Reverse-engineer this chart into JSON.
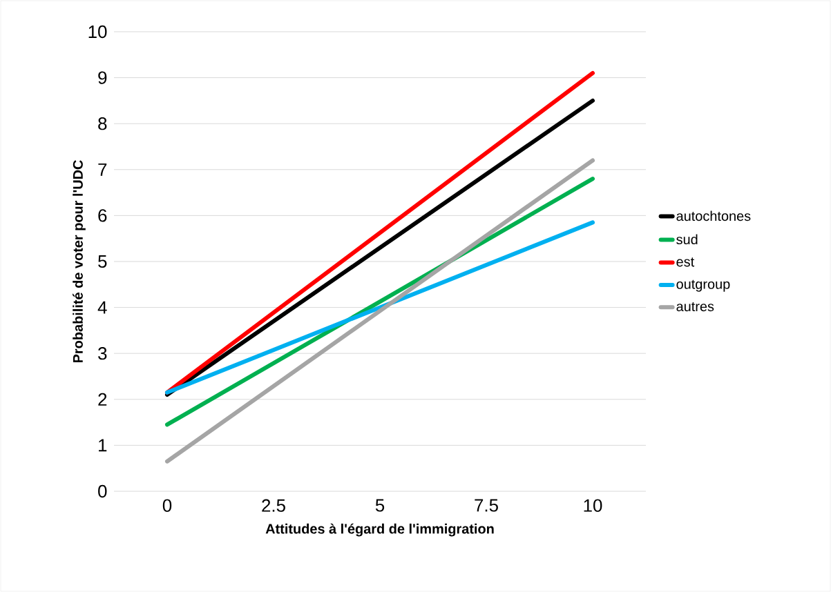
{
  "chart_data": {
    "type": "line",
    "xlabel": "Attitudes à l'égard de l'immigration",
    "ylabel": "Probabilité de voter pour l'UDC",
    "x": [
      0,
      10
    ],
    "series": [
      {
        "name": "autochtones",
        "color": "#000000",
        "values": [
          2.1,
          8.5
        ]
      },
      {
        "name": "sud",
        "color": "#00b050",
        "values": [
          1.45,
          6.8
        ]
      },
      {
        "name": "est",
        "color": "#ff0000",
        "values": [
          2.15,
          9.1
        ]
      },
      {
        "name": "outgroup",
        "color": "#00b0f0",
        "values": [
          2.15,
          5.85
        ]
      },
      {
        "name": "autres",
        "color": "#a5a5a5",
        "values": [
          0.65,
          7.2
        ]
      }
    ],
    "xlim": [
      -1.25,
      11.25
    ],
    "ylim": [
      0,
      10
    ],
    "xticks": [
      0,
      2.5,
      5,
      7.5,
      10
    ],
    "yticks": [
      0,
      1,
      2,
      3,
      4,
      5,
      6,
      7,
      8,
      9,
      10
    ],
    "grid": "y",
    "legend": "right",
    "marker": "none",
    "line_style": "solid"
  }
}
